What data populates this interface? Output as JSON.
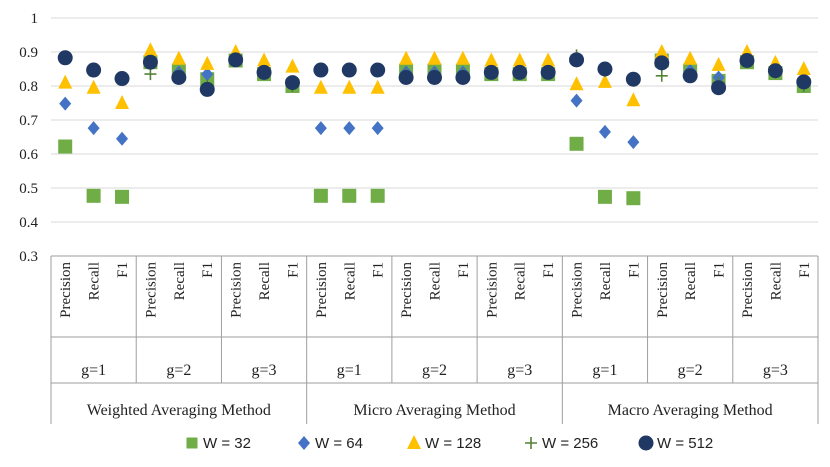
{
  "chart_data": {
    "type": "scatter",
    "ylim": [
      0.3,
      1
    ],
    "yticks": [
      "0.3",
      "0.4",
      "0.5",
      "0.6",
      "0.7",
      "0.8",
      "0.9",
      "1"
    ],
    "grid": true,
    "methods": [
      "Weighted Averaging Method",
      "Micro Averaging Method",
      "Macro Averaging Method"
    ],
    "groups": [
      "g=1",
      "g=2",
      "g=3"
    ],
    "metrics": [
      "Precision",
      "Recall",
      "F1"
    ],
    "legend_position": "bottom",
    "series": [
      {
        "name": "W = 32",
        "marker": "square",
        "color": "#70ad47",
        "values": [
          0.622,
          0.477,
          0.474,
          0.87,
          0.845,
          0.82,
          0.875,
          0.835,
          0.8,
          0.477,
          0.477,
          0.477,
          0.845,
          0.845,
          0.845,
          0.835,
          0.835,
          0.835,
          0.63,
          0.474,
          0.47,
          0.875,
          0.845,
          0.815,
          0.87,
          0.838,
          0.8
        ]
      },
      {
        "name": "W = 64",
        "marker": "diamond",
        "color": "#4472c4",
        "values": [
          0.748,
          0.676,
          0.645,
          0.875,
          0.84,
          0.835,
          0.88,
          0.84,
          0.81,
          0.676,
          0.676,
          0.676,
          0.84,
          0.84,
          0.84,
          0.84,
          0.84,
          0.84,
          0.757,
          0.665,
          0.635,
          0.875,
          0.845,
          0.825,
          0.875,
          0.842,
          0.81
        ]
      },
      {
        "name": "W = 128",
        "marker": "triangle",
        "color": "#ffc000",
        "values": [
          0.81,
          0.795,
          0.75,
          0.905,
          0.88,
          0.865,
          0.9,
          0.875,
          0.857,
          0.795,
          0.795,
          0.795,
          0.88,
          0.88,
          0.88,
          0.875,
          0.875,
          0.875,
          0.805,
          0.812,
          0.758,
          0.9,
          0.88,
          0.862,
          0.9,
          0.868,
          0.85
        ]
      },
      {
        "name": "W = 256",
        "marker": "plus",
        "color": "#548235",
        "values": [
          0.885,
          0.845,
          0.82,
          0.835,
          0.835,
          0.8,
          0.875,
          0.84,
          0.8,
          0.845,
          0.845,
          0.845,
          0.835,
          0.835,
          0.835,
          0.84,
          0.84,
          0.84,
          0.89,
          0.845,
          0.82,
          0.83,
          0.835,
          0.81,
          0.875,
          0.84,
          0.8
        ]
      },
      {
        "name": "W = 512",
        "marker": "circle",
        "color": "#203864",
        "values": [
          0.883,
          0.847,
          0.822,
          0.87,
          0.825,
          0.79,
          0.877,
          0.84,
          0.81,
          0.847,
          0.847,
          0.847,
          0.825,
          0.825,
          0.825,
          0.84,
          0.84,
          0.84,
          0.877,
          0.85,
          0.82,
          0.868,
          0.83,
          0.795,
          0.875,
          0.845,
          0.812
        ]
      }
    ]
  }
}
